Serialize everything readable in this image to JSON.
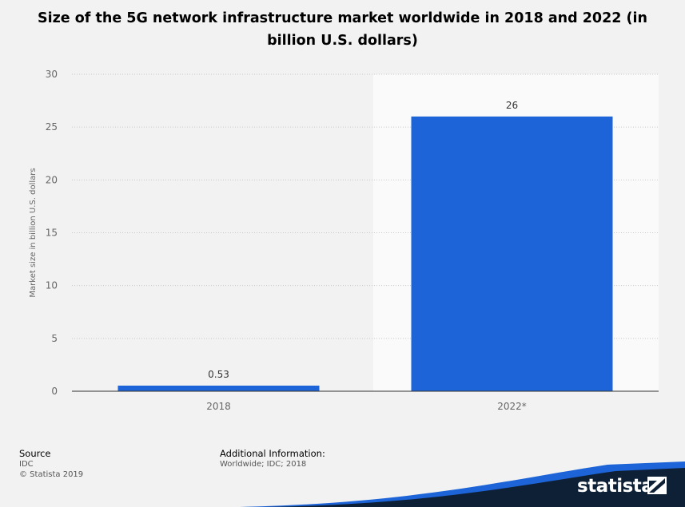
{
  "chart_data": {
    "type": "bar",
    "title": "Size of the 5G network infrastructure market worldwide in 2018 and 2022 (in billion U.S. dollars)",
    "categories": [
      "2018",
      "2022*"
    ],
    "values": [
      0.53,
      26
    ],
    "value_labels": [
      "0.53",
      "26"
    ],
    "ylabel": "Market size in billion U.S. dollars",
    "xlabel": "",
    "ylim": [
      0,
      30
    ],
    "yticks": [
      0,
      5,
      10,
      15,
      20,
      25,
      30
    ],
    "grid": true,
    "forecast_category": "2022*",
    "bar_color": "#1c64d8"
  },
  "footer": {
    "source_heading": "Source",
    "source_name": "IDC",
    "copyright": "© Statista 2019",
    "additional_heading": "Additional Information:",
    "additional_text": "Worldwide; IDC; 2018"
  },
  "brand": {
    "name": "statista",
    "icon": "statista-logo-icon"
  }
}
